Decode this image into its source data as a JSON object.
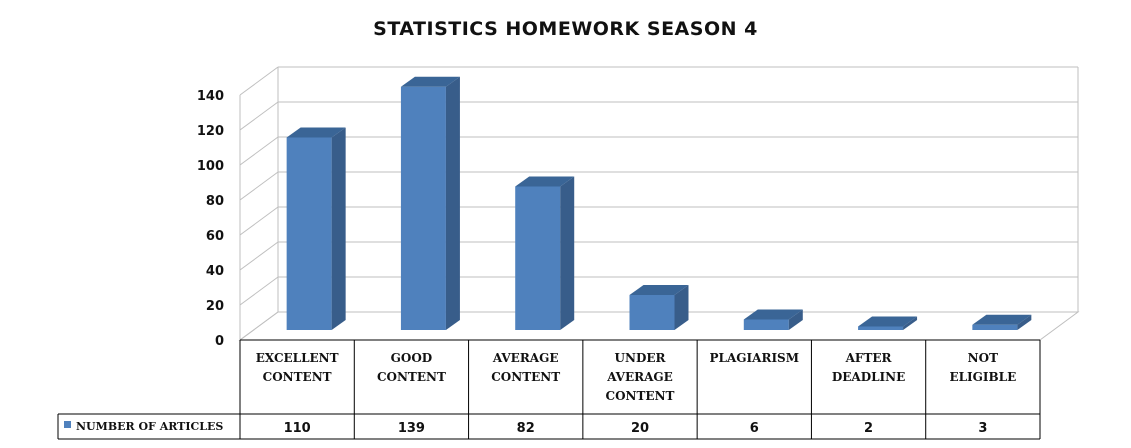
{
  "chart_data": {
    "type": "bar",
    "title": "STATISTICS HOMEWORK SEASON 4",
    "categories": [
      [
        "EXCELLENT",
        "CONTENT"
      ],
      [
        "GOOD",
        "CONTENT"
      ],
      [
        "AVERAGE",
        "CONTENT"
      ],
      [
        "UNDER",
        "AVERAGE",
        "CONTENT"
      ],
      [
        "PLAGIARISM"
      ],
      [
        "AFTER",
        "DEADLINE"
      ],
      [
        "NOT",
        "ELIGIBLE"
      ]
    ],
    "series": [
      {
        "name": "NUMBER OF ARTICLES",
        "values": [
          110,
          139,
          82,
          20,
          6,
          2,
          3
        ]
      }
    ],
    "yticks": [
      0,
      20,
      40,
      60,
      80,
      100,
      120,
      140
    ],
    "ylim": [
      0,
      140
    ],
    "grid": true,
    "legend": "data-table-left",
    "colors": {
      "bar_front": "#4F81BD",
      "bar_side": "#385D8A",
      "bar_top": "#3A6596",
      "grid": "#BFBFBF",
      "table_border": "#000000",
      "legend_key": "#4F81BD"
    }
  }
}
